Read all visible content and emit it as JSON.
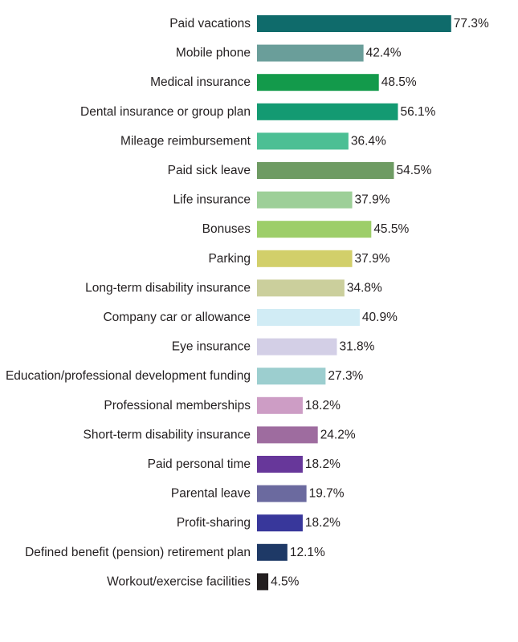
{
  "chart_data": {
    "type": "bar",
    "orientation": "horizontal",
    "categories": [
      "Paid vacations",
      "Mobile phone",
      "Medical insurance",
      "Dental insurance or group plan",
      "Mileage reimbursement",
      "Paid sick leave",
      "Life insurance",
      "Bonuses",
      "Parking",
      "Long-term disability insurance",
      "Company car or allowance",
      "Eye insurance",
      "Education/professional development funding",
      "Professional memberships",
      "Short-term disability insurance",
      "Paid personal time",
      "Parental leave",
      "Profit-sharing",
      "Defined benefit (pension) retirement plan",
      "Workout/exercise facilities"
    ],
    "values": [
      77.3,
      42.4,
      48.5,
      56.1,
      36.4,
      54.5,
      37.9,
      45.5,
      37.9,
      34.8,
      40.9,
      31.8,
      27.3,
      18.2,
      24.2,
      18.2,
      19.7,
      18.2,
      12.1,
      4.5
    ],
    "value_labels": [
      "77.3%",
      "42.4%",
      "48.5%",
      "56.1%",
      "36.4%",
      "54.5%",
      "37.9%",
      "45.5%",
      "37.9%",
      "34.8%",
      "40.9%",
      "31.8%",
      "27.3%",
      "18.2%",
      "24.2%",
      "18.2%",
      "19.7%",
      "18.2%",
      "12.1%",
      "4.5%"
    ],
    "colors": [
      "#0f6b6b",
      "#6a9e9a",
      "#139a4b",
      "#139a72",
      "#4cbf94",
      "#6e9b63",
      "#9dcf98",
      "#9dce69",
      "#d2cf6a",
      "#cbcf9c",
      "#d1ecf5",
      "#d3cfe6",
      "#9ccecf",
      "#cd9dc5",
      "#9e6c9f",
      "#67379a",
      "#6b6a9f",
      "#38379b",
      "#1e3966",
      "#231f20"
    ],
    "xlim": [
      0,
      100
    ],
    "grid": false,
    "legend": false
  }
}
